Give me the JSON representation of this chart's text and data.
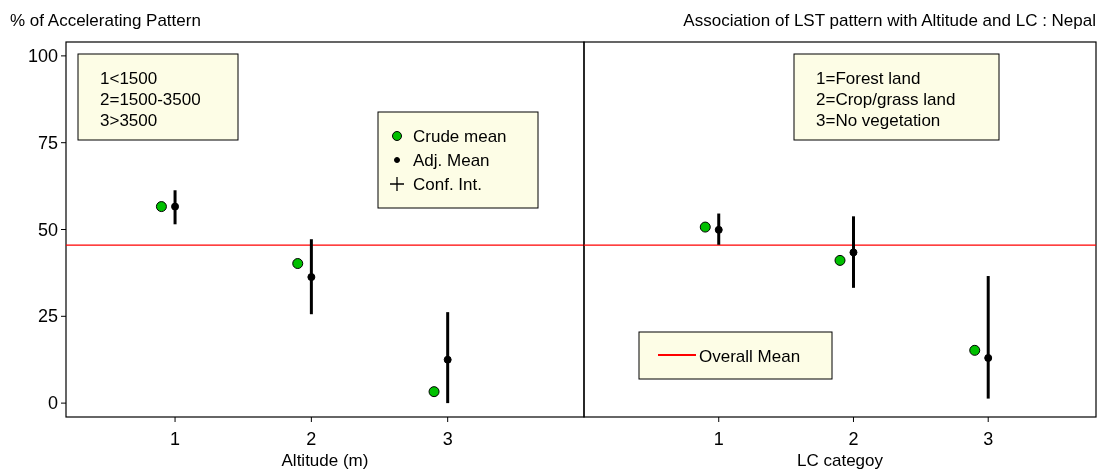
{
  "chart_data": [
    {
      "type": "scatter",
      "ylabel": "% of Accelerating Pattern",
      "xlabel": "Altitude (m)",
      "xlim": [
        0.2,
        4
      ],
      "xticks": [
        1,
        2,
        3
      ],
      "ylim": [
        -4,
        104
      ],
      "yticks": [
        0,
        25,
        50,
        75,
        100
      ],
      "marker": "circle",
      "legend": "top right",
      "grid": false,
      "annotations": [
        "1<1500",
        "2=1500-3500",
        "3>3500",
        "Conf. Int."
      ],
      "ref_lines": [
        {
          "axis": "y",
          "value": 45.5,
          "color": "#ff0000"
        }
      ],
      "series": [
        {
          "name": "Crude mean",
          "color": "#00c000",
          "x": [
            0.9,
            1.9,
            2.9
          ],
          "values": [
            56.6,
            40.2,
            3.3
          ]
        },
        {
          "name": "Adj. Mean",
          "color": "#000000",
          "x": [
            1,
            2,
            3
          ],
          "values": [
            56.6,
            36.3,
            12.5
          ],
          "errors": [
            [
              51.5,
              61.3
            ],
            [
              25.6,
              47.2
            ],
            [
              0,
              26.2
            ]
          ]
        }
      ]
    },
    {
      "type": "scatter",
      "title": "Association of LST pattern with Altitude and LC : Nepal",
      "xlabel": "LC categoy",
      "xlim": [
        0,
        3.8
      ],
      "xticks": [
        1,
        2,
        3
      ],
      "ylim": [
        -4,
        104
      ],
      "tick_labels": "x",
      "marker": "circle",
      "grid": false,
      "annotations": [
        "1=Forest land",
        "2=Crop/grass land",
        "3=No vegetation"
      ],
      "ref_lines": [
        {
          "axis": "y",
          "value": 45.5,
          "label": "Overall Mean",
          "color": "#ff0000"
        }
      ],
      "series": [
        {
          "color": "#00c000",
          "x": [
            0.9,
            1.9,
            2.9
          ],
          "values": [
            50.7,
            41.1,
            15.2
          ]
        },
        {
          "color": "#000000",
          "x": [
            1,
            2,
            3
          ],
          "values": [
            49.9,
            43.4,
            13.0
          ],
          "errors": [
            [
              45.6,
              54.6
            ],
            [
              33.2,
              53.8
            ],
            [
              1.3,
              36.6
            ]
          ]
        }
      ]
    }
  ]
}
